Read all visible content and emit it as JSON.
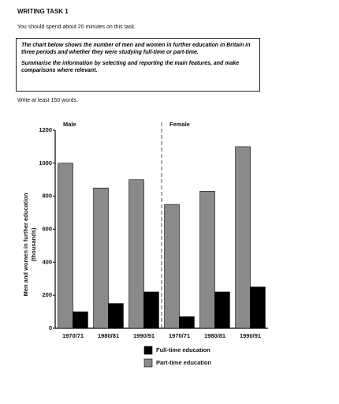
{
  "header": {
    "title": "WRITING TASK 1",
    "instruction": "You should spend about 20 minutes on this task."
  },
  "task_box": {
    "paragraphs": [
      "The chart below shows the number of men and women in further education in Britain in three periods and whether they were studying full-time or part-time.",
      "Summarise the information by selecting and reporting the main features, and make comparisons where relevant."
    ]
  },
  "word_count": "Write at least 150 words.",
  "chart_data": {
    "type": "bar",
    "y_label": [
      "Men and women in further education",
      "(thousands)"
    ],
    "ylim": [
      0,
      1200
    ],
    "yticks": [
      0,
      200,
      400,
      600,
      800,
      1000,
      1200
    ],
    "series": [
      {
        "name": "Full-time education",
        "color": "#000000"
      },
      {
        "name": "Part-time education",
        "color": "#8a8a8a"
      }
    ],
    "panels": [
      {
        "title": "Male",
        "categories": [
          "1970/71",
          "1980/81",
          "1990/91"
        ],
        "values": [
          [
            100,
            150,
            220
          ],
          [
            1000,
            850,
            900
          ]
        ]
      },
      {
        "title": "Female",
        "categories": [
          "1970/71",
          "1980/81",
          "1990/91"
        ],
        "values": [
          [
            70,
            220,
            250
          ],
          [
            750,
            830,
            1100
          ]
        ]
      }
    ]
  }
}
